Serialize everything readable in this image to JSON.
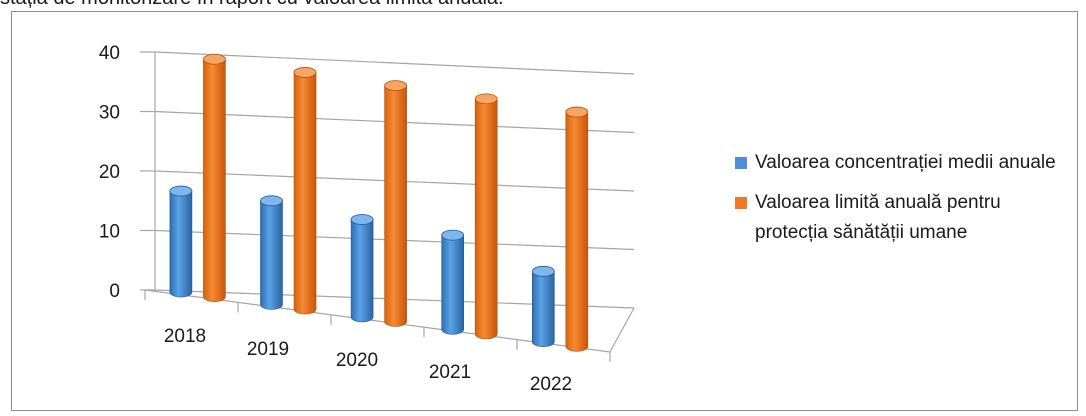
{
  "caption": "stația de monitorizare în raport cu valoarea limită anuală.",
  "chart_data": {
    "type": "bar",
    "variant": "3d-cylinder",
    "categories": [
      "2018",
      "2019",
      "2020",
      "2021",
      "2022"
    ],
    "series": [
      {
        "name": "Valoarea concentrației medii anuale",
        "color": "#4a90d9",
        "values": [
          17,
          17.5,
          16.5,
          16,
          12
        ]
      },
      {
        "name": "Valoarea limită anuală pentru protecția sănătății umane",
        "color": "#ef7a22",
        "values": [
          40,
          40,
          40,
          40,
          40
        ]
      }
    ],
    "yticks": [
      "0",
      "10",
      "20",
      "30",
      "40"
    ],
    "ylim": [
      0,
      40
    ],
    "grid": true,
    "legend": "right",
    "title": "",
    "xlabel": "",
    "ylabel": ""
  }
}
